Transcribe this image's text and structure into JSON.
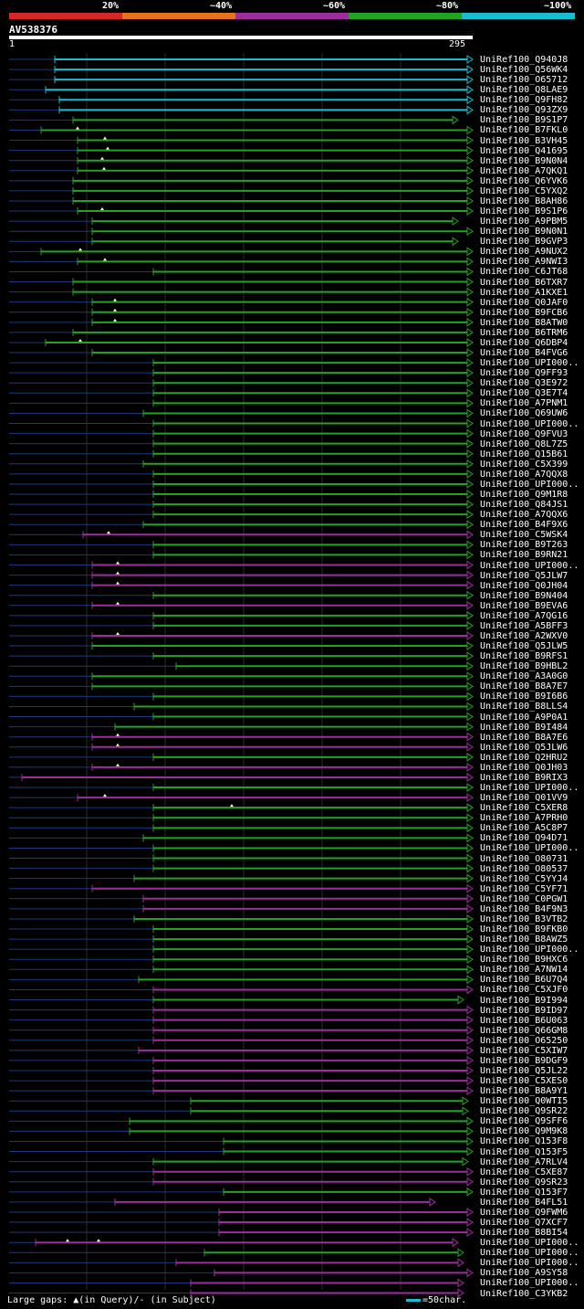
{
  "legend": [
    {
      "label": "20%",
      "color": "#d62728"
    },
    {
      "label": "~40%",
      "color": "#e8711a"
    },
    {
      "label": "~60%",
      "color": "#9b2e9b"
    },
    {
      "label": "~80%",
      "color": "#24a224"
    },
    {
      "label": "~100%",
      "color": "#17becf"
    }
  ],
  "query": {
    "name": "AV538376",
    "start_label": "1",
    "end_label": "295"
  },
  "hits": [
    {
      "id": "UniRef100_Q940J8",
      "color": "cyan",
      "start": 60,
      "end": 513,
      "gaps": []
    },
    {
      "id": "UniRef100_Q56WK4",
      "color": "cyan",
      "start": 60,
      "end": 513,
      "gaps": []
    },
    {
      "id": "UniRef100_O65712",
      "color": "cyan",
      "start": 60,
      "end": 513,
      "gaps": []
    },
    {
      "id": "UniRef100_Q8LAE9",
      "color": "cyan",
      "start": 50,
      "end": 513,
      "gaps": []
    },
    {
      "id": "UniRef100_Q9FH82",
      "color": "cyan",
      "start": 65,
      "end": 513,
      "gaps": []
    },
    {
      "id": "UniRef100_Q93ZX9",
      "color": "cyan",
      "start": 65,
      "end": 513,
      "gaps": []
    },
    {
      "id": "UniRef100_B9S1P7",
      "color": "green",
      "start": 80,
      "end": 497,
      "gaps": []
    },
    {
      "id": "UniRef100_B7FKL0",
      "color": "green",
      "start": 45,
      "end": 513,
      "gaps": [
        85
      ]
    },
    {
      "id": "UniRef100_B3VH45",
      "color": "green",
      "start": 85,
      "end": 513,
      "gaps": [
        115
      ]
    },
    {
      "id": "UniRef100_Q41695",
      "color": "green",
      "start": 85,
      "end": 513,
      "gaps": [
        118
      ]
    },
    {
      "id": "UniRef100_B9N0N4",
      "color": "green",
      "start": 85,
      "end": 513,
      "gaps": [
        112
      ]
    },
    {
      "id": "UniRef100_A7QKQ1",
      "color": "green",
      "start": 85,
      "end": 513,
      "gaps": [
        114
      ]
    },
    {
      "id": "UniRef100_Q6YVK6",
      "color": "green",
      "start": 80,
      "end": 513,
      "gaps": []
    },
    {
      "id": "UniRef100_C5YXQ2",
      "color": "green",
      "start": 80,
      "end": 513,
      "gaps": []
    },
    {
      "id": "UniRef100_B8AH86",
      "color": "green",
      "start": 80,
      "end": 513,
      "gaps": []
    },
    {
      "id": "UniRef100_B9S1P6",
      "color": "green",
      "start": 85,
      "end": 513,
      "gaps": [
        112
      ]
    },
    {
      "id": "UniRef100_A9PBM5",
      "color": "green",
      "start": 101,
      "end": 497,
      "gaps": []
    },
    {
      "id": "UniRef100_B9N0N1",
      "color": "green",
      "start": 101,
      "end": 513,
      "gaps": []
    },
    {
      "id": "UniRef100_B9GVP3",
      "color": "green",
      "start": 101,
      "end": 497,
      "gaps": []
    },
    {
      "id": "UniRef100_A9NUX2",
      "color": "green",
      "start": 45,
      "end": 513,
      "gaps": [
        88
      ]
    },
    {
      "id": "UniRef100_A9NWI3",
      "color": "green",
      "start": 85,
      "end": 513,
      "gaps": [
        115
      ]
    },
    {
      "id": "UniRef100_C6JT68",
      "color": "green",
      "start": 168,
      "end": 513,
      "gaps": []
    },
    {
      "id": "UniRef100_B6TXR7",
      "color": "green",
      "start": 80,
      "end": 513,
      "gaps": []
    },
    {
      "id": "UniRef100_A1KXE1",
      "color": "green",
      "start": 80,
      "end": 513,
      "gaps": []
    },
    {
      "id": "UniRef100_Q0JAF0",
      "color": "green",
      "start": 101,
      "end": 513,
      "gaps": [
        126
      ]
    },
    {
      "id": "UniRef100_B9FCB6",
      "color": "green",
      "start": 101,
      "end": 513,
      "gaps": [
        126
      ]
    },
    {
      "id": "UniRef100_B8ATW0",
      "color": "green",
      "start": 101,
      "end": 513,
      "gaps": [
        126
      ]
    },
    {
      "id": "UniRef100_B6TRM6",
      "color": "green",
      "start": 80,
      "end": 513,
      "gaps": []
    },
    {
      "id": "UniRef100_Q6DBP4",
      "color": "green",
      "start": 50,
      "end": 513,
      "gaps": [
        88
      ]
    },
    {
      "id": "UniRef100_B4FVG6",
      "color": "green",
      "start": 101,
      "end": 513,
      "gaps": []
    },
    {
      "id": "UniRef100_UPI000..",
      "color": "green",
      "start": 168,
      "end": 513,
      "gaps": []
    },
    {
      "id": "UniRef100_Q9FF93",
      "color": "green",
      "start": 168,
      "end": 513,
      "gaps": []
    },
    {
      "id": "UniRef100_Q3E972",
      "color": "green",
      "start": 168,
      "end": 513,
      "gaps": []
    },
    {
      "id": "UniRef100_Q3E7T4",
      "color": "green",
      "start": 168,
      "end": 513,
      "gaps": []
    },
    {
      "id": "UniRef100_A7PNM1",
      "color": "green",
      "start": 168,
      "end": 513,
      "gaps": []
    },
    {
      "id": "UniRef100_Q69UW6",
      "color": "green",
      "start": 157,
      "end": 513,
      "gaps": []
    },
    {
      "id": "UniRef100_UPI000..",
      "color": "green",
      "start": 168,
      "end": 513,
      "gaps": []
    },
    {
      "id": "UniRef100_Q9FVU3",
      "color": "green",
      "start": 168,
      "end": 513,
      "gaps": []
    },
    {
      "id": "UniRef100_Q8L7Z5",
      "color": "green",
      "start": 168,
      "end": 513,
      "gaps": []
    },
    {
      "id": "UniRef100_Q15B61",
      "color": "green",
      "start": 168,
      "end": 513,
      "gaps": []
    },
    {
      "id": "UniRef100_C5X399",
      "color": "green",
      "start": 157,
      "end": 513,
      "gaps": []
    },
    {
      "id": "UniRef100_A7QQX8",
      "color": "green",
      "start": 168,
      "end": 513,
      "gaps": []
    },
    {
      "id": "UniRef100_UPI000..",
      "color": "green",
      "start": 168,
      "end": 513,
      "gaps": []
    },
    {
      "id": "UniRef100_Q9M1R8",
      "color": "green",
      "start": 168,
      "end": 513,
      "gaps": []
    },
    {
      "id": "UniRef100_Q84JS1",
      "color": "green",
      "start": 168,
      "end": 513,
      "gaps": []
    },
    {
      "id": "UniRef100_A7QQX6",
      "color": "green",
      "start": 168,
      "end": 513,
      "gaps": []
    },
    {
      "id": "UniRef100_B4F9X6",
      "color": "green",
      "start": 157,
      "end": 513,
      "gaps": []
    },
    {
      "id": "UniRef100_C5WSK4",
      "color": "purple",
      "start": 91,
      "end": 513,
      "gaps": [
        119
      ]
    },
    {
      "id": "UniRef100_B9T263",
      "color": "green",
      "start": 168,
      "end": 513,
      "gaps": []
    },
    {
      "id": "UniRef100_B9RN21",
      "color": "green",
      "start": 168,
      "end": 513,
      "gaps": []
    },
    {
      "id": "UniRef100_UPI000..",
      "color": "purple",
      "start": 101,
      "end": 513,
      "gaps": [
        129
      ]
    },
    {
      "id": "UniRef100_Q5JLW7",
      "color": "purple",
      "start": 101,
      "end": 513,
      "gaps": [
        129
      ]
    },
    {
      "id": "UniRef100_Q0JH04",
      "color": "purple",
      "start": 101,
      "end": 513,
      "gaps": [
        129
      ]
    },
    {
      "id": "UniRef100_B9N404",
      "color": "green",
      "start": 168,
      "end": 513,
      "gaps": []
    },
    {
      "id": "UniRef100_B9EVA6",
      "color": "purple",
      "start": 101,
      "end": 513,
      "gaps": [
        129
      ]
    },
    {
      "id": "UniRef100_A7QG16",
      "color": "green",
      "start": 168,
      "end": 513,
      "gaps": []
    },
    {
      "id": "UniRef100_A5BFF3",
      "color": "green",
      "start": 168,
      "end": 513,
      "gaps": []
    },
    {
      "id": "UniRef100_A2WXV0",
      "color": "purple",
      "start": 101,
      "end": 513,
      "gaps": [
        129
      ]
    },
    {
      "id": "UniRef100_Q5JLW5",
      "color": "green",
      "start": 101,
      "end": 513,
      "gaps": []
    },
    {
      "id": "UniRef100_B9RFS1",
      "color": "green",
      "start": 168,
      "end": 513,
      "gaps": []
    },
    {
      "id": "UniRef100_B9HBL2",
      "color": "green",
      "start": 193,
      "end": 513,
      "gaps": []
    },
    {
      "id": "UniRef100_A3A0G0",
      "color": "green",
      "start": 101,
      "end": 513,
      "gaps": []
    },
    {
      "id": "UniRef100_B8A7E7",
      "color": "green",
      "start": 101,
      "end": 513,
      "gaps": []
    },
    {
      "id": "UniRef100_B9I6B6",
      "color": "green",
      "start": 168,
      "end": 513,
      "gaps": []
    },
    {
      "id": "UniRef100_B8LLS4",
      "color": "green",
      "start": 147,
      "end": 513,
      "gaps": []
    },
    {
      "id": "UniRef100_A9P0A1",
      "color": "green",
      "start": 168,
      "end": 513,
      "gaps": []
    },
    {
      "id": "UniRef100_B9I484",
      "color": "green",
      "start": 126,
      "end": 513,
      "gaps": []
    },
    {
      "id": "UniRef100_B8A7E6",
      "color": "purple",
      "start": 101,
      "end": 513,
      "gaps": [
        129
      ]
    },
    {
      "id": "UniRef100_Q5JLW6",
      "color": "purple",
      "start": 101,
      "end": 513,
      "gaps": [
        129
      ]
    },
    {
      "id": "UniRef100_Q2HRU2",
      "color": "green",
      "start": 168,
      "end": 513,
      "gaps": []
    },
    {
      "id": "UniRef100_Q0JH03",
      "color": "purple",
      "start": 101,
      "end": 513,
      "gaps": [
        129
      ]
    },
    {
      "id": "UniRef100_B9RIX3",
      "color": "purple",
      "start": 24,
      "end": 513,
      "gaps": []
    },
    {
      "id": "UniRef100_UPI000..",
      "color": "green",
      "start": 168,
      "end": 513,
      "gaps": []
    },
    {
      "id": "UniRef100_Q01VV9",
      "color": "purple",
      "start": 85,
      "end": 513,
      "gaps": [
        115
      ]
    },
    {
      "id": "UniRef100_C5XER8",
      "color": "green",
      "start": 168,
      "end": 513,
      "gaps": [
        254
      ]
    },
    {
      "id": "UniRef100_A7PRH0",
      "color": "green",
      "start": 168,
      "end": 513,
      "gaps": []
    },
    {
      "id": "UniRef100_A5C8P7",
      "color": "green",
      "start": 168,
      "end": 513,
      "gaps": []
    },
    {
      "id": "UniRef100_Q94D71",
      "color": "green",
      "start": 157,
      "end": 513,
      "gaps": []
    },
    {
      "id": "UniRef100_UPI000..",
      "color": "green",
      "start": 168,
      "end": 513,
      "gaps": []
    },
    {
      "id": "UniRef100_O80731",
      "color": "green",
      "start": 168,
      "end": 513,
      "gaps": []
    },
    {
      "id": "UniRef100_O80537",
      "color": "green",
      "start": 168,
      "end": 513,
      "gaps": []
    },
    {
      "id": "UniRef100_C5YYJ4",
      "color": "green",
      "start": 147,
      "end": 513,
      "gaps": []
    },
    {
      "id": "UniRef100_C5YF71",
      "color": "purple",
      "start": 101,
      "end": 513,
      "gaps": []
    },
    {
      "id": "UniRef100_C0PGW1",
      "color": "purple",
      "start": 157,
      "end": 513,
      "gaps": []
    },
    {
      "id": "UniRef100_B4F9N3",
      "color": "purple",
      "start": 157,
      "end": 513,
      "gaps": []
    },
    {
      "id": "UniRef100_B3VTB2",
      "color": "green",
      "start": 147,
      "end": 513,
      "gaps": []
    },
    {
      "id": "UniRef100_B9FKB0",
      "color": "green",
      "start": 168,
      "end": 513,
      "gaps": []
    },
    {
      "id": "UniRef100_B8AWZ5",
      "color": "green",
      "start": 168,
      "end": 513,
      "gaps": []
    },
    {
      "id": "UniRef100_UPI000..",
      "color": "green",
      "start": 168,
      "end": 513,
      "gaps": []
    },
    {
      "id": "UniRef100_B9HXC6",
      "color": "green",
      "start": 168,
      "end": 513,
      "gaps": []
    },
    {
      "id": "UniRef100_A7NW14",
      "color": "green",
      "start": 168,
      "end": 513,
      "gaps": []
    },
    {
      "id": "UniRef100_B6U7Q4",
      "color": "green",
      "start": 152,
      "end": 513,
      "gaps": []
    },
    {
      "id": "UniRef100_C5XJF0",
      "color": "purple",
      "start": 168,
      "end": 513,
      "gaps": []
    },
    {
      "id": "UniRef100_B9I994",
      "color": "green",
      "start": 168,
      "end": 503,
      "gaps": []
    },
    {
      "id": "UniRef100_B9ID97",
      "color": "purple",
      "start": 168,
      "end": 513,
      "gaps": []
    },
    {
      "id": "UniRef100_B6U063",
      "color": "purple",
      "start": 168,
      "end": 513,
      "gaps": []
    },
    {
      "id": "UniRef100_Q66GM8",
      "color": "purple",
      "start": 168,
      "end": 513,
      "gaps": []
    },
    {
      "id": "UniRef100_O65250",
      "color": "purple",
      "start": 168,
      "end": 513,
      "gaps": []
    },
    {
      "id": "UniRef100_C5XIW7",
      "color": "purple",
      "start": 152,
      "end": 513,
      "gaps": []
    },
    {
      "id": "UniRef100_B9DGF9",
      "color": "purple",
      "start": 168,
      "end": 513,
      "gaps": []
    },
    {
      "id": "UniRef100_Q5JL22",
      "color": "purple",
      "start": 168,
      "end": 513,
      "gaps": []
    },
    {
      "id": "UniRef100_C5XES0",
      "color": "purple",
      "start": 168,
      "end": 513,
      "gaps": []
    },
    {
      "id": "UniRef100_B8A9Y1",
      "color": "purple",
      "start": 168,
      "end": 513,
      "gaps": []
    },
    {
      "id": "UniRef100_Q0WTI5",
      "color": "green",
      "start": 209,
      "end": 508,
      "gaps": []
    },
    {
      "id": "UniRef100_Q9SR22",
      "color": "green",
      "start": 209,
      "end": 508,
      "gaps": []
    },
    {
      "id": "UniRef100_Q9SFF6",
      "color": "green",
      "start": 142,
      "end": 513,
      "gaps": []
    },
    {
      "id": "UniRef100_Q9M9K8",
      "color": "green",
      "start": 142,
      "end": 513,
      "gaps": []
    },
    {
      "id": "UniRef100_Q153F8",
      "color": "green",
      "start": 245,
      "end": 513,
      "gaps": []
    },
    {
      "id": "UniRef100_Q153F5",
      "color": "green",
      "start": 245,
      "end": 513,
      "gaps": []
    },
    {
      "id": "UniRef100_A7RLV4",
      "color": "green",
      "start": 168,
      "end": 508,
      "gaps": []
    },
    {
      "id": "UniRef100_C5XE87",
      "color": "purple",
      "start": 168,
      "end": 513,
      "gaps": []
    },
    {
      "id": "UniRef100_Q9SR23",
      "color": "purple",
      "start": 168,
      "end": 513,
      "gaps": []
    },
    {
      "id": "UniRef100_Q153F7",
      "color": "green",
      "start": 245,
      "end": 513,
      "gaps": []
    },
    {
      "id": "UniRef100_B4FL51",
      "color": "purple",
      "start": 126,
      "end": 472,
      "gaps": []
    },
    {
      "id": "UniRef100_Q9FWM6",
      "color": "purple",
      "start": 240,
      "end": 513,
      "gaps": []
    },
    {
      "id": "UniRef100_Q7XCF7",
      "color": "purple",
      "start": 240,
      "end": 513,
      "gaps": []
    },
    {
      "id": "UniRef100_B8BI54",
      "color": "purple",
      "start": 240,
      "end": 513,
      "gaps": []
    },
    {
      "id": "UniRef100_UPI000..",
      "color": "purple",
      "start": 39,
      "end": 497,
      "gaps": [
        74,
        108
      ]
    },
    {
      "id": "UniRef100_UPI000..",
      "color": "green",
      "start": 224,
      "end": 503,
      "gaps": []
    },
    {
      "id": "UniRef100_UPI000..",
      "color": "purple",
      "start": 193,
      "end": 503,
      "gaps": []
    },
    {
      "id": "UniRef100_A9SY58",
      "color": "purple",
      "start": 235,
      "end": 513,
      "gaps": []
    },
    {
      "id": "UniRef100_UPI000..",
      "color": "purple",
      "start": 209,
      "end": 503,
      "gaps": []
    },
    {
      "id": "UniRef100_C3YKB2",
      "color": "purple",
      "start": 209,
      "end": 503,
      "gaps": []
    }
  ],
  "footer": {
    "text": "Large gaps: ▲(in Query)/- (in Subject)",
    "scale_label": "=50char."
  },
  "colors": {
    "cyan": "#17becf",
    "green": "#24a224",
    "purple": "#9b2e9b",
    "dashed": "#1e3a7a",
    "grid": "#2a2a2a"
  }
}
